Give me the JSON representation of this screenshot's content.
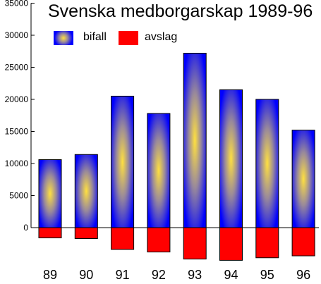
{
  "chart_data": {
    "type": "bar",
    "title": "Svenska medborgarskap 1989-96",
    "xlabel": "",
    "ylabel": "",
    "categories": [
      "89",
      "90",
      "91",
      "92",
      "93",
      "94",
      "95",
      "96"
    ],
    "series": [
      {
        "name": "bifall",
        "values": [
          10600,
          11400,
          20500,
          17800,
          27200,
          21500,
          20000,
          15200
        ],
        "color": "#0000ff",
        "highlight": "#ffe040"
      },
      {
        "name": "avslag",
        "values": [
          -1600,
          -1700,
          -3400,
          -3800,
          -4900,
          -5100,
          -4700,
          -4400
        ],
        "color": "#ff0000"
      }
    ],
    "y_ticks": [
      "0",
      "5000",
      "10000",
      "15000",
      "20000",
      "25000",
      "30000",
      "35000"
    ],
    "ylim": [
      -5500,
      35000
    ],
    "grid": false,
    "legend_position": "top-left"
  }
}
